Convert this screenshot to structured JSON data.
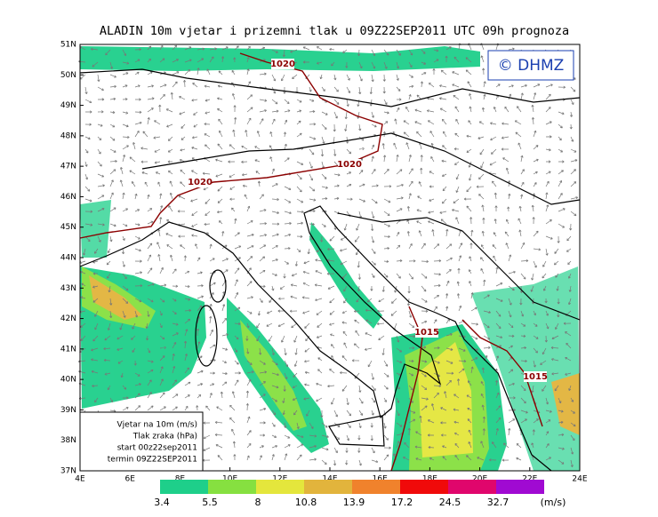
{
  "title": "ALADIN 10m vjetar i prizemni tlak u 09Z22SEP2011 UTC 09h prognoza",
  "logo": "© DHMZ",
  "latitude_labels": [
    "51N",
    "50N",
    "49N",
    "48N",
    "47N",
    "46N",
    "45N",
    "44N",
    "43N",
    "42N",
    "41N",
    "40N",
    "39N",
    "38N",
    "37N"
  ],
  "longitude_labels": [
    "4E",
    "6E",
    "8E",
    "10E",
    "12E",
    "14E",
    "16E",
    "18E",
    "20E",
    "22E",
    "24E"
  ],
  "isobar_labels": [
    "1020",
    "1020",
    "1020",
    "1015",
    "1015"
  ],
  "legend_lines": [
    "Vjetar na 10m (m/s)",
    "Tlak zraka (hPa)",
    "start 00z22sep2011",
    "termin 09Z22SEP2011"
  ],
  "colorbar": {
    "items": [
      {
        "label": "3.4",
        "color": "#1ecf8a"
      },
      {
        "label": "5.5",
        "color": "#86e040"
      },
      {
        "label": "8",
        "color": "#e4e63c"
      },
      {
        "label": "10.8",
        "color": "#e2b43c"
      },
      {
        "label": "13.9",
        "color": "#f0822c"
      },
      {
        "label": "17.2",
        "color": "#f00a0a"
      },
      {
        "label": "24.5",
        "color": "#e0066c"
      },
      {
        "label": "32.7",
        "color": "#a00ad2"
      }
    ],
    "unit": "(m/s)"
  }
}
